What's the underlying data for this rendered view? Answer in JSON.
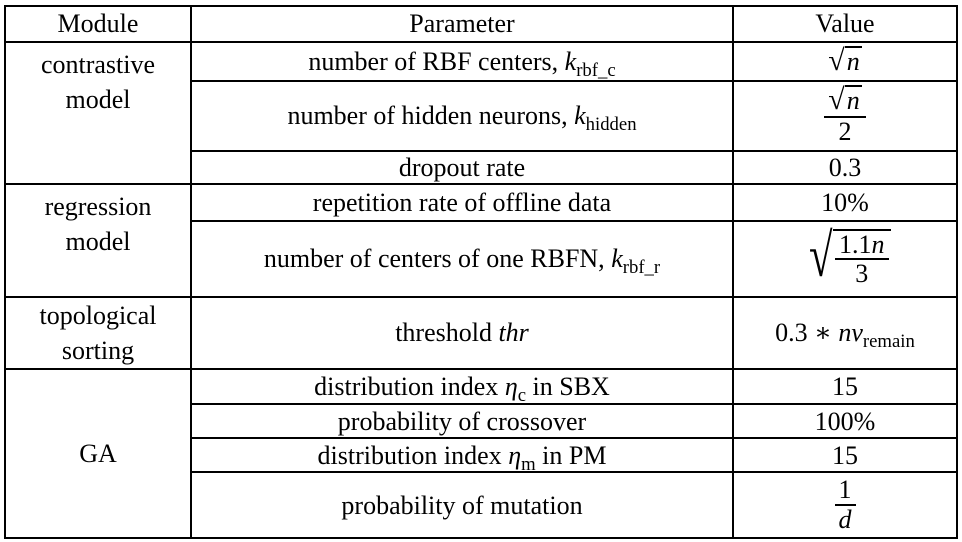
{
  "headers": {
    "module": "Module",
    "parameter": "Parameter",
    "value": "Value"
  },
  "modules": {
    "contrastive": "contrastive model",
    "regression": "regression model",
    "topological": "topological sorting",
    "ga": "GA"
  },
  "rows": {
    "r1": {
      "param_text": "number of RBF centers, ",
      "param_var": "k",
      "param_sub": "rbf_c",
      "value_var": "n"
    },
    "r2": {
      "param_text": "number of hidden neurons, ",
      "param_var": "k",
      "param_sub": "hidden",
      "value_var": "n",
      "value_den": "2"
    },
    "r3": {
      "param_text": "dropout rate",
      "value": "0.3"
    },
    "r4": {
      "param_text": "repetition rate of offline data",
      "value": "10%"
    },
    "r5": {
      "param_text": "number of centers of one RBFN, ",
      "param_var": "k",
      "param_sub": "rbf_r",
      "value_num_coef": "1.1",
      "value_var": "n",
      "value_den": "3"
    },
    "r6": {
      "param_text": "threshold ",
      "param_var": "thr",
      "value_prefix": "0.3 ∗ ",
      "value_var": "nv",
      "value_sub": "remain"
    },
    "r7": {
      "param_pre": "distribution index ",
      "param_var": "η",
      "param_sub": "c",
      "param_post": " in SBX",
      "value": "15"
    },
    "r8": {
      "param_text": "probability of crossover",
      "value": "100%"
    },
    "r9": {
      "param_pre": "distribution index ",
      "param_var": "η",
      "param_sub": "m",
      "param_post": " in PM",
      "value": "15"
    },
    "r10": {
      "param_text": "probability of mutation",
      "value_num": "1",
      "value_var": "d"
    }
  }
}
